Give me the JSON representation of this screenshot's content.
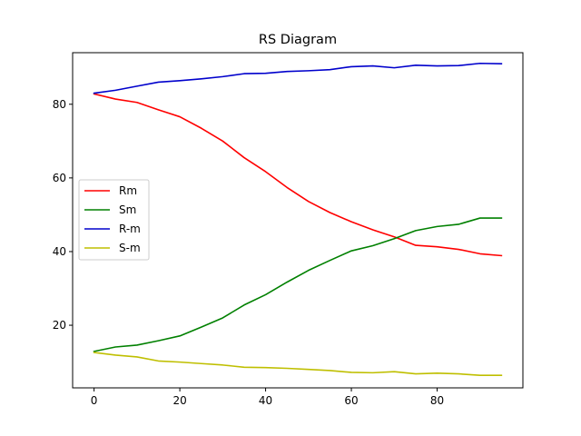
{
  "chart_data": {
    "type": "line",
    "title": "RS Diagram",
    "xlabel": "",
    "ylabel": "",
    "xlim": [
      -5,
      100
    ],
    "ylim": [
      3,
      94
    ],
    "xticks": [
      0,
      20,
      40,
      60,
      80
    ],
    "yticks": [
      20,
      40,
      60,
      80
    ],
    "grid": false,
    "legend_position": "center-left",
    "x": [
      0,
      5,
      10,
      15,
      20,
      25,
      30,
      35,
      40,
      45,
      50,
      55,
      60,
      65,
      70,
      75,
      80,
      85,
      90,
      95
    ],
    "series": [
      {
        "name": "Rm",
        "color": "#ff0000",
        "values": [
          82.8,
          81.4,
          80.5,
          78.5,
          76.6,
          73.5,
          70.0,
          65.5,
          61.7,
          57.4,
          53.6,
          50.6,
          48.1,
          45.9,
          44.0,
          41.7,
          41.3,
          40.6,
          39.4,
          38.9
        ]
      },
      {
        "name": "Sm",
        "color": "#008000",
        "values": [
          12.9,
          14.1,
          14.6,
          15.8,
          17.1,
          19.5,
          22.0,
          25.5,
          28.3,
          31.7,
          34.9,
          37.6,
          40.2,
          41.6,
          43.5,
          45.7,
          46.8,
          47.4,
          49.1,
          49.1
        ]
      },
      {
        "name": "R-m",
        "color": "#0000cc",
        "values": [
          83.0,
          83.8,
          84.9,
          86.0,
          86.4,
          86.9,
          87.5,
          88.3,
          88.4,
          88.9,
          89.1,
          89.4,
          90.2,
          90.4,
          89.9,
          90.6,
          90.4,
          90.5,
          91.1,
          91.0
        ]
      },
      {
        "name": "S-m",
        "color": "#bfbf00",
        "values": [
          12.6,
          11.9,
          11.4,
          10.3,
          10.0,
          9.6,
          9.2,
          8.6,
          8.5,
          8.3,
          8.0,
          7.7,
          7.2,
          7.1,
          7.4,
          6.8,
          7.0,
          6.8,
          6.4,
          6.4
        ]
      }
    ]
  }
}
